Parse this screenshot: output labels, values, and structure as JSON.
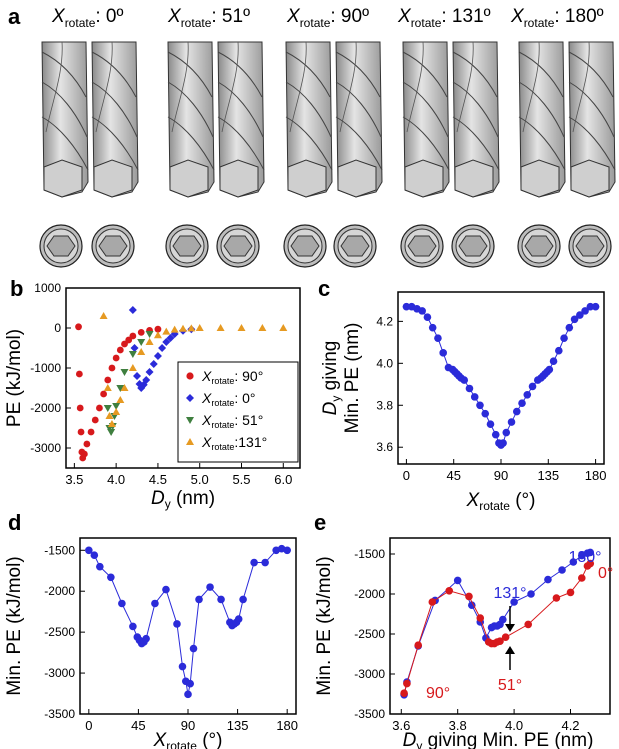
{
  "panels": {
    "a": "a",
    "b": "b",
    "c": "c",
    "d": "d",
    "e": "e"
  },
  "panel_a": {
    "columns": [
      {
        "var": "X",
        "sub": "rotate",
        "val": ": 0º"
      },
      {
        "var": "X",
        "sub": "rotate",
        "val": ": 51º"
      },
      {
        "var": "X",
        "sub": "rotate",
        "val": ": 90º"
      },
      {
        "var": "X",
        "sub": "rotate",
        "val": ": 131º"
      },
      {
        "var": "X",
        "sub": "rotate",
        "val": ": 180º"
      }
    ]
  },
  "colors": {
    "red": "#d7191c",
    "blue": "#2b2bd9",
    "green": "#3f7f3f",
    "orange": "#e69a22"
  },
  "chart_data": [
    {
      "panel": "b",
      "type": "scatter",
      "ylabel": "PE (kJ/mol)",
      "xlabel_var": "D",
      "xlabel_sub": "y",
      "xlabel_unit": " (nm)",
      "xlim": [
        3.4,
        6.2
      ],
      "ylim": [
        -3500,
        1000
      ],
      "xticks": [
        "3.5",
        "4.0",
        "4.5",
        "5.0",
        "5.5",
        "6.0"
      ],
      "yticks": [
        "1000",
        "0",
        "-1000",
        "-2000",
        "-3000"
      ],
      "legend": [
        {
          "var": "X",
          "sub": "rotate",
          "val": ":  90°"
        },
        {
          "var": "X",
          "sub": "rotate",
          "val": ":    0°"
        },
        {
          "var": "X",
          "sub": "rotate",
          "val": ":  51°"
        },
        {
          "var": "X",
          "sub": "rotate",
          "val": ":131°"
        }
      ],
      "series": [
        {
          "name": "90°",
          "marker": "circle",
          "color": "#d7191c",
          "x": [
            3.55,
            3.56,
            3.57,
            3.58,
            3.59,
            3.6,
            3.62,
            3.65,
            3.7,
            3.75,
            3.8,
            3.85,
            3.9,
            3.95,
            4.0,
            4.05,
            4.1,
            4.15,
            4.2,
            4.3,
            4.4,
            4.5
          ],
          "y": [
            30,
            -1150,
            -2000,
            -2600,
            -3100,
            -3250,
            -3150,
            -2900,
            -2600,
            -2300,
            -2000,
            -1650,
            -1300,
            -1000,
            -750,
            -550,
            -400,
            -300,
            -200,
            -110,
            -60,
            -30
          ]
        },
        {
          "name": "0°",
          "marker": "diamond",
          "color": "#2b2bd9",
          "x": [
            4.2,
            4.22,
            4.25,
            4.28,
            4.3,
            4.33,
            4.36,
            4.4,
            4.45,
            4.5,
            4.55,
            4.6,
            4.65,
            4.7,
            4.8,
            4.9
          ],
          "y": [
            450,
            -500,
            -1200,
            -1400,
            -1500,
            -1420,
            -1300,
            -1100,
            -900,
            -700,
            -500,
            -350,
            -250,
            -150,
            -70,
            -30
          ]
        },
        {
          "name": "51°",
          "marker": "triangle-down",
          "color": "#3f7f3f",
          "x": [
            3.9,
            3.92,
            3.94,
            3.96,
            3.98,
            4.0,
            4.05,
            4.1,
            4.2,
            4.3,
            4.4
          ],
          "y": [
            -2000,
            -2500,
            -2600,
            -2450,
            -2200,
            -1950,
            -1500,
            -1100,
            -650,
            -350,
            -150
          ]
        },
        {
          "name": "131°",
          "marker": "triangle-up",
          "color": "#e69a22",
          "x": [
            3.85,
            3.9,
            3.92,
            3.95,
            4.0,
            4.05,
            4.1,
            4.2,
            4.3,
            4.4,
            4.5,
            4.6,
            4.7,
            4.8,
            4.9,
            5.0,
            5.25,
            5.5,
            5.75,
            6.0
          ],
          "y": [
            300,
            -1500,
            -2200,
            -2400,
            -2100,
            -1800,
            -1500,
            -1000,
            -600,
            -350,
            -180,
            -90,
            -40,
            -20,
            -10,
            0,
            0,
            0,
            0,
            0
          ]
        }
      ]
    },
    {
      "panel": "c",
      "type": "line",
      "ylabel_line1_var": "D",
      "ylabel_line1_sub": "y",
      "ylabel_line1_rest": " giving",
      "ylabel_line2": "Min. PE (nm)",
      "xlabel_var": "X",
      "xlabel_sub": "rotate",
      "xlabel_unit": " (°)",
      "xlim": [
        -8,
        188
      ],
      "ylim": [
        3.52,
        4.34
      ],
      "xticks": [
        "0",
        "45",
        "90",
        "135",
        "180"
      ],
      "yticks": [
        "4.2",
        "4.0",
        "3.8",
        "3.6"
      ],
      "series": [
        {
          "color": "#2b2bd9",
          "x": [
            0,
            5,
            10,
            15,
            20,
            25,
            30,
            35,
            40,
            44,
            46,
            48,
            50,
            52,
            55,
            60,
            65,
            70,
            75,
            80,
            85,
            88,
            90,
            92,
            95,
            100,
            105,
            110,
            115,
            120,
            125,
            128,
            130,
            132,
            134,
            136,
            140,
            145,
            150,
            155,
            160,
            165,
            170,
            175,
            180
          ],
          "y": [
            4.27,
            4.27,
            4.26,
            4.25,
            4.22,
            4.17,
            4.12,
            4.05,
            3.98,
            3.97,
            3.96,
            3.95,
            3.94,
            3.93,
            3.92,
            3.88,
            3.84,
            3.8,
            3.76,
            3.71,
            3.66,
            3.62,
            3.61,
            3.62,
            3.67,
            3.72,
            3.77,
            3.81,
            3.85,
            3.89,
            3.92,
            3.93,
            3.94,
            3.95,
            3.96,
            3.97,
            4.01,
            4.06,
            4.12,
            4.17,
            4.21,
            4.23,
            4.25,
            4.27,
            4.27
          ]
        }
      ]
    },
    {
      "panel": "d",
      "type": "line",
      "ylabel": "Min. PE (kJ/mol)",
      "xlabel_var": "X",
      "xlabel_sub": "rotate",
      "xlabel_unit": " (°)",
      "xlim": [
        -8,
        188
      ],
      "ylim": [
        -3500,
        -1350
      ],
      "xticks": [
        "0",
        "45",
        "90",
        "135",
        "180"
      ],
      "yticks": [
        "-1500",
        "-2000",
        "-2500",
        "-3000",
        "-3500"
      ],
      "series": [
        {
          "color": "#2b2bd9",
          "x": [
            0,
            5,
            10,
            20,
            30,
            40,
            44,
            46,
            48,
            50,
            52,
            60,
            70,
            80,
            85,
            88,
            90,
            92,
            95,
            100,
            110,
            120,
            128,
            130,
            132,
            134,
            136,
            140,
            150,
            160,
            170,
            175,
            180
          ],
          "y": [
            -1500,
            -1560,
            -1700,
            -1830,
            -2150,
            -2430,
            -2560,
            -2600,
            -2640,
            -2620,
            -2580,
            -2150,
            -1980,
            -2400,
            -2920,
            -3100,
            -3260,
            -3130,
            -2700,
            -2100,
            -1950,
            -2100,
            -2380,
            -2420,
            -2400,
            -2380,
            -2340,
            -2100,
            -1650,
            -1650,
            -1500,
            -1480,
            -1500
          ]
        }
      ]
    },
    {
      "panel": "e",
      "type": "line",
      "ylabel": "Min. PE (kJ/mol)",
      "xlabel_var": "D",
      "xlabel_sub": "y",
      "xlabel_rest": " giving Min. PE (nm)",
      "xlim": [
        3.56,
        4.34
      ],
      "ylim": [
        -3500,
        -1300
      ],
      "xticks": [
        "3.6",
        "3.8",
        "4.0",
        "4.2"
      ],
      "yticks": [
        "-1500",
        "-2000",
        "-2500",
        "-3000",
        "-3500"
      ],
      "annotations": [
        "180°",
        "0°",
        "131°",
        "51°",
        "90°"
      ],
      "series": [
        {
          "name": "131°",
          "color": "#2b2bd9",
          "x": [
            3.61,
            3.62,
            3.66,
            3.72,
            3.8,
            3.85,
            3.88,
            3.9,
            3.92,
            3.93,
            3.94,
            3.95,
            3.96,
            4.0,
            4.06,
            4.12,
            4.17,
            4.21,
            4.24,
            4.26,
            4.27
          ],
          "y": [
            -3260,
            -3100,
            -2650,
            -2080,
            -1830,
            -2140,
            -2350,
            -2550,
            -2420,
            -2400,
            -2400,
            -2380,
            -2320,
            -2100,
            -2000,
            -1820,
            -1700,
            -1600,
            -1520,
            -1490,
            -1480
          ]
        },
        {
          "name": "51°",
          "color": "#d7191c",
          "x": [
            3.61,
            3.62,
            3.66,
            3.71,
            3.77,
            3.84,
            3.88,
            3.91,
            3.92,
            3.93,
            3.94,
            3.95,
            3.97,
            4.05,
            4.15,
            4.2,
            4.24,
            4.26,
            4.27
          ],
          "y": [
            -3240,
            -3120,
            -2640,
            -2100,
            -1960,
            -2030,
            -2300,
            -2600,
            -2620,
            -2620,
            -2600,
            -2590,
            -2540,
            -2380,
            -2050,
            -1980,
            -1800,
            -1650,
            -1620
          ]
        }
      ]
    }
  ]
}
